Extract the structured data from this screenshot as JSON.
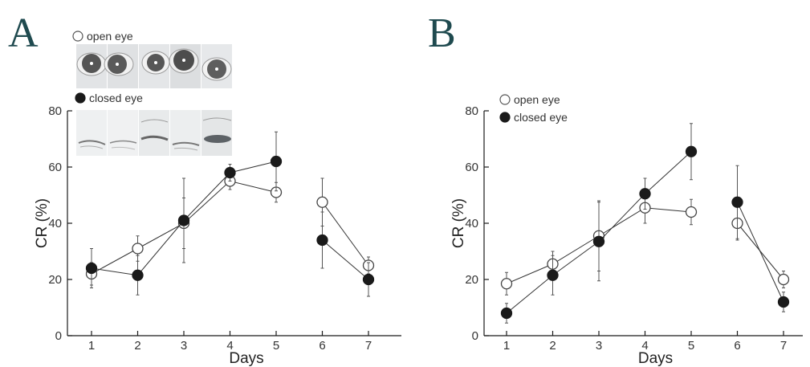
{
  "colors": {
    "letter": "#1f4a4f",
    "ink": "#1a1a1a",
    "open_fill": "#ffffff",
    "closed_fill": "#1a1a1a"
  },
  "legend": {
    "open": "open eye",
    "closed": "closed eye"
  },
  "photos": {
    "description_icons": [
      "eye-photo-open",
      "eye-photo-closed"
    ],
    "open_count": 5,
    "closed_count": 5
  },
  "chart_data": [
    {
      "panel": "A",
      "type": "line",
      "xlabel": "Days",
      "ylabel": "CR (%)",
      "x": [
        1,
        2,
        3,
        4,
        5,
        6,
        7
      ],
      "xticks": [
        "1",
        "2",
        "3",
        "4",
        "5",
        "6",
        "7"
      ],
      "yticks": [
        "0",
        "20",
        "40",
        "60",
        "80"
      ],
      "ylim": [
        0,
        80
      ],
      "segments": [
        [
          0,
          4
        ],
        [
          5,
          6
        ]
      ],
      "legend_placement": "top-left",
      "series": [
        {
          "name": "open eye",
          "marker": "open",
          "values": [
            22,
            31,
            40,
            55,
            51,
            47.5,
            25
          ],
          "err": [
            4,
            4.5,
            9,
            3,
            3.5,
            8.5,
            3
          ]
        },
        {
          "name": "closed eye",
          "marker": "closed",
          "values": [
            24,
            21.5,
            41,
            58,
            62,
            34,
            20
          ],
          "err": [
            7,
            7,
            15,
            3,
            10.5,
            10,
            6
          ]
        }
      ]
    },
    {
      "panel": "B",
      "type": "line",
      "xlabel": "Days",
      "ylabel": "CR (%)",
      "x": [
        1,
        2,
        3,
        4,
        5,
        6,
        7
      ],
      "xticks": [
        "1",
        "2",
        "3",
        "4",
        "5",
        "6",
        "7"
      ],
      "yticks": [
        "0",
        "20",
        "40",
        "60",
        "80"
      ],
      "ylim": [
        0,
        80
      ],
      "segments": [
        [
          0,
          4
        ],
        [
          5,
          6
        ]
      ],
      "legend_placement": "top-left",
      "series": [
        {
          "name": "open eye",
          "marker": "open",
          "values": [
            18.5,
            25.5,
            35.5,
            45.5,
            44,
            40,
            20
          ],
          "err": [
            4,
            4.5,
            12.5,
            5.5,
            4.5,
            6,
            3
          ]
        },
        {
          "name": "closed eye",
          "marker": "closed",
          "values": [
            8,
            21.5,
            33.5,
            50.5,
            65.5,
            47.5,
            12
          ],
          "err": [
            3.5,
            7,
            14,
            5.5,
            10,
            13,
            3.5
          ]
        }
      ]
    }
  ]
}
